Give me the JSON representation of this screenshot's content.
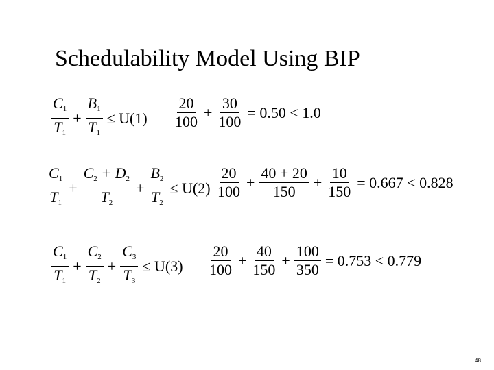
{
  "slide": {
    "title": "Schedulability Model Using BIP",
    "page_number": "48",
    "accent_color": "#4a9cc0"
  },
  "equations": [
    {
      "symbolic": {
        "terms": [
          {
            "num": "C",
            "num_sub": "1",
            "den": "T",
            "den_sub": "1"
          },
          {
            "num": "B",
            "num_sub": "1",
            "den": "T",
            "den_sub": "1"
          }
        ],
        "rhs": "≤ U(1)"
      },
      "numeric": {
        "terms": [
          {
            "num": "20",
            "den": "100"
          },
          {
            "num": "30",
            "den": "100"
          }
        ],
        "rhs": "= 0.50 < 1.0"
      }
    },
    {
      "symbolic": {
        "terms": [
          {
            "num": "C",
            "num_sub": "1",
            "den": "T",
            "den_sub": "1"
          },
          {
            "num": "C",
            "num_sub": "2",
            "num_extra": " + D",
            "num_extra_sub": "2",
            "den": "T",
            "den_sub": "2"
          },
          {
            "num": "B",
            "num_sub": "2",
            "den": "T",
            "den_sub": "2"
          }
        ],
        "rhs": "≤ U(2)"
      },
      "numeric": {
        "terms": [
          {
            "num": "20",
            "den": "100"
          },
          {
            "num": "40 + 20",
            "den": "150"
          },
          {
            "num": "10",
            "den": "150"
          }
        ],
        "rhs": "= 0.667 < 0.828"
      }
    },
    {
      "symbolic": {
        "terms": [
          {
            "num": "C",
            "num_sub": "1",
            "den": "T",
            "den_sub": "1"
          },
          {
            "num": "C",
            "num_sub": "2",
            "den": "T",
            "den_sub": "2"
          },
          {
            "num": "C",
            "num_sub": "3",
            "den": "T",
            "den_sub": "3"
          }
        ],
        "rhs": "≤ U(3)"
      },
      "numeric": {
        "terms": [
          {
            "num": "20",
            "den": "100"
          },
          {
            "num": "40",
            "den": "150"
          },
          {
            "num": "100",
            "den": "350"
          }
        ],
        "rhs": "= 0.753 < 0.779"
      }
    }
  ],
  "plus_sign": "+"
}
